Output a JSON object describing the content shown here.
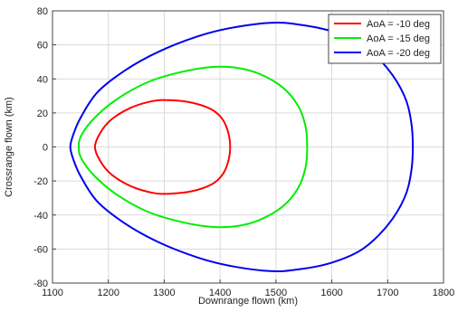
{
  "chart_data": {
    "type": "line",
    "title": "",
    "xlabel": "Downrange flown (km)",
    "ylabel": "Crossrange flown (km)",
    "xlim": [
      1100,
      1800
    ],
    "ylim": [
      -80,
      80
    ],
    "xticks": [
      1100,
      1200,
      1300,
      1400,
      1500,
      1600,
      1700,
      1800
    ],
    "yticks": [
      -80,
      -60,
      -40,
      -20,
      0,
      20,
      40,
      60,
      80
    ],
    "grid": true,
    "legend_position": "top-right",
    "series": [
      {
        "name": "AoA = -10 deg",
        "color": "#ff0000",
        "points": [
          [
            1418,
            0
          ],
          [
            1415,
            8
          ],
          [
            1405,
            16
          ],
          [
            1385,
            22
          ],
          [
            1350,
            26
          ],
          [
            1310,
            27.5
          ],
          [
            1280,
            27
          ],
          [
            1240,
            23
          ],
          [
            1205,
            16
          ],
          [
            1185,
            8
          ],
          [
            1176,
            0
          ],
          [
            1185,
            -8
          ],
          [
            1205,
            -16
          ],
          [
            1240,
            -23
          ],
          [
            1280,
            -27
          ],
          [
            1310,
            -27.5
          ],
          [
            1350,
            -26
          ],
          [
            1385,
            -22
          ],
          [
            1405,
            -16
          ],
          [
            1415,
            -8
          ],
          [
            1418,
            0
          ]
        ]
      },
      {
        "name": "AoA = -15 deg",
        "color": "#00ee00",
        "points": [
          [
            1556,
            0
          ],
          [
            1553,
            12
          ],
          [
            1540,
            24
          ],
          [
            1512,
            35
          ],
          [
            1470,
            43
          ],
          [
            1430,
            46.5
          ],
          [
            1385,
            47
          ],
          [
            1330,
            44
          ],
          [
            1270,
            38
          ],
          [
            1215,
            28
          ],
          [
            1175,
            17
          ],
          [
            1152,
            7
          ],
          [
            1147,
            0
          ],
          [
            1152,
            -7
          ],
          [
            1175,
            -17
          ],
          [
            1215,
            -28
          ],
          [
            1270,
            -38
          ],
          [
            1330,
            -44
          ],
          [
            1385,
            -47
          ],
          [
            1430,
            -46.5
          ],
          [
            1470,
            -43
          ],
          [
            1512,
            -35
          ],
          [
            1540,
            -24
          ],
          [
            1553,
            -12
          ],
          [
            1556,
            0
          ]
        ]
      },
      {
        "name": "AoA = -20 deg",
        "color": "#0000ee",
        "points": [
          [
            1745,
            0
          ],
          [
            1742,
            15
          ],
          [
            1730,
            30
          ],
          [
            1700,
            46
          ],
          [
            1655,
            60
          ],
          [
            1600,
            68
          ],
          [
            1540,
            72
          ],
          [
            1490,
            73
          ],
          [
            1420,
            70
          ],
          [
            1360,
            65
          ],
          [
            1290,
            56
          ],
          [
            1230,
            45
          ],
          [
            1180,
            32
          ],
          [
            1150,
            17
          ],
          [
            1137,
            7
          ],
          [
            1132,
            0
          ],
          [
            1137,
            -7
          ],
          [
            1150,
            -17
          ],
          [
            1180,
            -32
          ],
          [
            1230,
            -45
          ],
          [
            1290,
            -56
          ],
          [
            1360,
            -65
          ],
          [
            1420,
            -70
          ],
          [
            1490,
            -73
          ],
          [
            1540,
            -72
          ],
          [
            1600,
            -68
          ],
          [
            1655,
            -60
          ],
          [
            1700,
            -46
          ],
          [
            1730,
            -30
          ],
          [
            1742,
            -15
          ],
          [
            1745,
            0
          ]
        ]
      }
    ]
  }
}
